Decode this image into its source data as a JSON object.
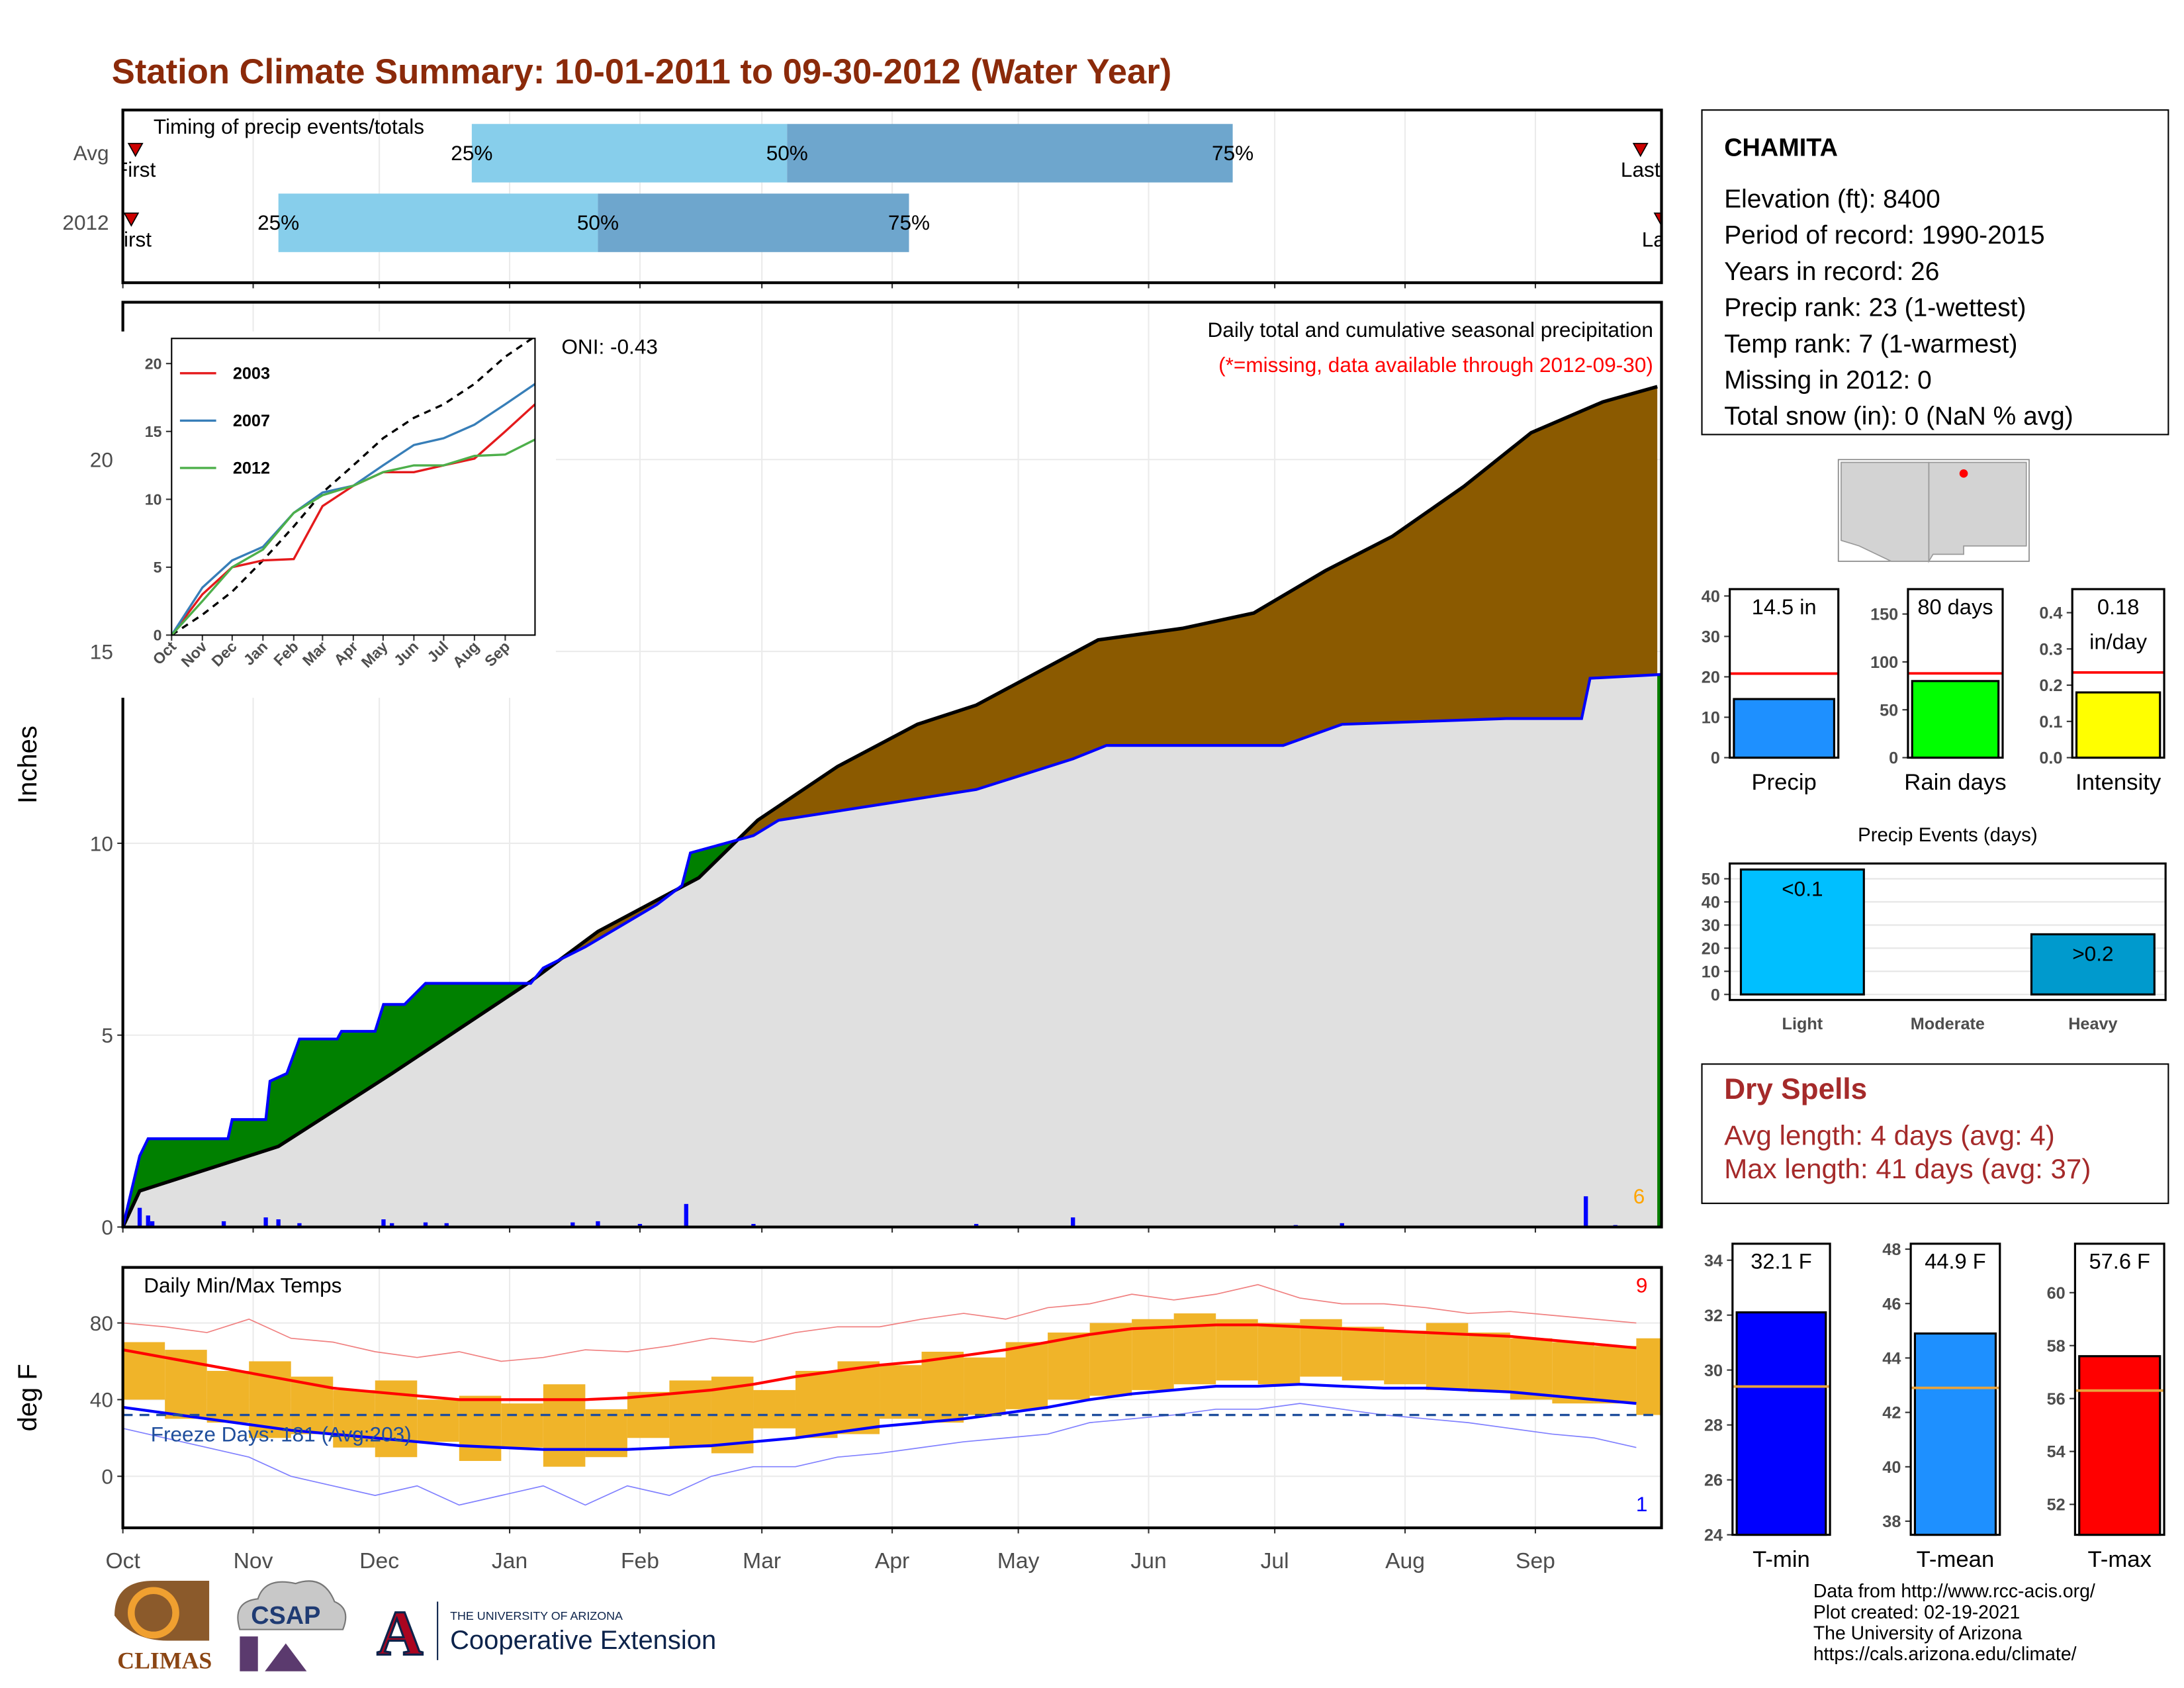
{
  "title": "Station Climate Summary: 10-01-2011 to 09-30-2012 (Water Year)",
  "station": {
    "name": "CHAMITA",
    "lines": [
      "Elevation (ft): 8400",
      "Period of record: 1990-2015",
      "Years in record: 26",
      "Precip rank: 23 (1-wettest)",
      "Temp rank: 7 (1-warmest)",
      "Missing in 2012: 0",
      "Total snow (in): 0 (NaN % avg)"
    ]
  },
  "dry_spells": {
    "title": "Dry Spells",
    "lines": [
      "Avg length: 4 days (avg: 4)",
      "Max length: 41 days (avg: 37)"
    ]
  },
  "footer": [
    "Data from http://www.rcc-acis.org/",
    "Plot created: 02-19-2021",
    "The University of Arizona",
    "https://cals.arizona.edu/climate/"
  ],
  "logos": {
    "climas": "CLIMAS",
    "csap": "CSAP",
    "ua_letter": "A",
    "ua_name": "THE UNIVERSITY OF ARIZONA",
    "extension": "Cooperative Extension"
  },
  "chart_data": [
    {
      "type": "timeline",
      "title": "Timing of precip events/totals",
      "xlim": [
        0,
        366
      ],
      "categories": [
        "Avg",
        "2012"
      ],
      "first": [
        3,
        2
      ],
      "q25": [
        83,
        37
      ],
      "q50": [
        158,
        113
      ],
      "q75": [
        264,
        187
      ],
      "last": [
        361,
        366
      ],
      "labels": {
        "first": "First",
        "q25": "25%",
        "q50": "50%",
        "q75": "75%",
        "last": "Last"
      },
      "colors": [
        "#87ceeb",
        "#6ea6cd"
      ],
      "marker_color": "#cc0000"
    },
    {
      "type": "area",
      "title": "Daily total and cumulative seasonal precipitation",
      "subtitle": "(*=missing, data available through 2012-09-30)",
      "ylabel": "Inches",
      "annotation": "ONI: -0.43",
      "count_label": "6",
      "xlim": [
        0,
        366
      ],
      "ylim": [
        0,
        24.1
      ],
      "yticks": [
        0,
        5,
        10,
        15,
        20
      ],
      "grid": true,
      "series": [
        {
          "color": "#000000",
          "x": [
            0,
            4,
            37,
            64,
            97,
            113,
            137,
            151,
            170,
            189,
            203,
            232,
            252,
            269,
            286,
            302,
            319,
            335,
            352,
            365
          ],
          "values": [
            0,
            0.94,
            2.1,
            4.0,
            6.4,
            7.7,
            9.1,
            10.6,
            12.0,
            13.1,
            13.6,
            15.3,
            15.6,
            16.0,
            17.1,
            18.0,
            19.3,
            20.7,
            21.5,
            21.9
          ]
        },
        {
          "color": "#0000ff",
          "x": [
            0,
            4,
            6,
            25,
            26,
            34,
            35,
            39,
            42,
            51,
            52,
            60,
            62,
            67,
            72,
            97,
            100,
            110,
            127,
            133,
            135,
            150,
            156,
            203,
            226,
            234,
            276,
            290,
            329,
            347,
            349,
            366
          ],
          "values": [
            0,
            1.85,
            2.3,
            2.3,
            2.8,
            2.8,
            3.8,
            4.0,
            4.9,
            4.9,
            5.1,
            5.1,
            5.8,
            5.8,
            6.35,
            6.35,
            6.75,
            7.3,
            8.4,
            8.9,
            9.75,
            10.2,
            10.6,
            11.4,
            12.2,
            12.55,
            12.55,
            13.1,
            13.25,
            13.25,
            14.3,
            14.4
          ]
        }
      ],
      "above_color": "#008000",
      "below_color": "#8b5a00",
      "fill": "#e0e0e0",
      "count_color": "#ffa500",
      "daily": {
        "color": "#0000ff",
        "x": [
          4,
          6,
          7,
          24,
          34,
          37,
          42,
          62,
          64,
          72,
          77,
          107,
          113,
          123,
          134,
          150,
          203,
          226,
          279,
          290,
          348,
          355
        ],
        "values": [
          0.5,
          0.3,
          0.15,
          0.15,
          0.25,
          0.2,
          0.1,
          0.2,
          0.1,
          0.12,
          0.1,
          0.12,
          0.15,
          0.08,
          0.6,
          0.08,
          0.08,
          0.25,
          0.05,
          0.1,
          0.8,
          0.05
        ]
      }
    },
    {
      "type": "line",
      "xlim": [
        0,
        366
      ],
      "ylim": [
        0,
        21.85
      ],
      "yticks": [
        0,
        5,
        10,
        15,
        20
      ],
      "xticks": [
        {
          "value": 0,
          "label": "Oct"
        },
        {
          "value": 31,
          "label": "Nov"
        },
        {
          "value": 61,
          "label": "Dec"
        },
        {
          "value": 92,
          "label": "Jan"
        },
        {
          "value": 123,
          "label": "Feb"
        },
        {
          "value": 152,
          "label": "Mar"
        },
        {
          "value": 183,
          "label": "Apr"
        },
        {
          "value": 213,
          "label": "May"
        },
        {
          "value": 244,
          "label": "Jun"
        },
        {
          "value": 274,
          "label": "Jul"
        },
        {
          "value": 305,
          "label": "Aug"
        },
        {
          "value": 336,
          "label": "Sep"
        }
      ],
      "x": [
        0,
        31,
        61,
        92,
        123,
        152,
        183,
        213,
        244,
        274,
        305,
        336,
        366
      ],
      "series": [
        {
          "color": "#000000",
          "dash": true,
          "values": [
            0,
            1.5,
            3.2,
            5.5,
            8.0,
            10.5,
            12.5,
            14.5,
            16.0,
            17.0,
            18.5,
            20.5,
            22.0
          ]
        },
        {
          "name": "2003",
          "color": "#e41a1c",
          "values": [
            0,
            3.0,
            5.0,
            5.5,
            5.6,
            9.5,
            11.0,
            12.0,
            12.0,
            12.5,
            13.0,
            15.0,
            17.0
          ]
        },
        {
          "name": "2007",
          "color": "#377eb8",
          "values": [
            0,
            3.5,
            5.5,
            6.5,
            9.0,
            10.5,
            11.0,
            12.5,
            14.0,
            14.5,
            15.5,
            17.0,
            18.5
          ]
        },
        {
          "name": "2012",
          "color": "#4daf4a",
          "values": [
            0,
            2.5,
            5.0,
            6.3,
            9.0,
            10.3,
            11.0,
            12.0,
            12.5,
            12.5,
            13.2,
            13.3,
            14.4
          ]
        }
      ]
    },
    {
      "type": "range",
      "title": "Daily Min/Max Temps",
      "ylabel": "deg F",
      "annotation": "Freeze Days: 181 (Avg:203)",
      "high_count": "9",
      "low_count": "1",
      "freeze": 32,
      "xlim": [
        0,
        366
      ],
      "ylim": [
        -26.9,
        109
      ],
      "yticks": [
        0,
        40,
        80
      ],
      "grid": true,
      "xticks": [
        {
          "value": 0,
          "label": "Oct"
        },
        {
          "value": 31,
          "label": "Nov"
        },
        {
          "value": 61,
          "label": "Dec"
        },
        {
          "value": 92,
          "label": "Jan"
        },
        {
          "value": 123,
          "label": "Feb"
        },
        {
          "value": 152,
          "label": "Mar"
        },
        {
          "value": 183,
          "label": "Apr"
        },
        {
          "value": 213,
          "label": "May"
        },
        {
          "value": 244,
          "label": "Jun"
        },
        {
          "value": 274,
          "label": "Jul"
        },
        {
          "value": 305,
          "label": "Aug"
        },
        {
          "value": 336,
          "label": "Sep"
        }
      ],
      "x": [
        0,
        10,
        20,
        30,
        40,
        50,
        60,
        70,
        80,
        90,
        100,
        110,
        120,
        130,
        140,
        150,
        160,
        170,
        180,
        190,
        200,
        210,
        220,
        230,
        240,
        250,
        260,
        270,
        280,
        290,
        300,
        310,
        320,
        330,
        340,
        350,
        360
      ],
      "daily_max": [
        70,
        66,
        55,
        60,
        52,
        45,
        50,
        40,
        42,
        38,
        48,
        35,
        44,
        50,
        52,
        45,
        55,
        60,
        58,
        65,
        62,
        70,
        75,
        80,
        82,
        85,
        82,
        80,
        82,
        78,
        76,
        80,
        75,
        72,
        70,
        68,
        72
      ],
      "daily_min": [
        40,
        30,
        28,
        20,
        22,
        15,
        10,
        18,
        8,
        15,
        5,
        10,
        20,
        15,
        12,
        25,
        20,
        22,
        30,
        28,
        32,
        35,
        40,
        42,
        45,
        48,
        50,
        48,
        52,
        50,
        48,
        45,
        44,
        40,
        38,
        38,
        32
      ],
      "avg_max": [
        66,
        62,
        58,
        54,
        50,
        46,
        44,
        42,
        40,
        40,
        40,
        40,
        41,
        43,
        45,
        48,
        52,
        55,
        58,
        60,
        63,
        66,
        70,
        74,
        77,
        78,
        79,
        79,
        78,
        77,
        76,
        75,
        74,
        73,
        71,
        69,
        67
      ],
      "avg_min": [
        36,
        33,
        30,
        27,
        24,
        22,
        20,
        18,
        16,
        15,
        14,
        14,
        14,
        15,
        16,
        18,
        20,
        23,
        26,
        28,
        30,
        33,
        36,
        40,
        43,
        45,
        47,
        47,
        48,
        47,
        46,
        46,
        45,
        44,
        42,
        40,
        38
      ],
      "record_high": [
        80,
        78,
        75,
        82,
        72,
        70,
        65,
        62,
        65,
        60,
        62,
        66,
        65,
        68,
        72,
        70,
        75,
        78,
        78,
        82,
        85,
        82,
        88,
        90,
        95,
        92,
        95,
        100,
        93,
        90,
        90,
        88,
        85,
        86,
        84,
        82,
        80
      ],
      "record_low": [
        25,
        20,
        15,
        10,
        0,
        -5,
        -10,
        -5,
        -15,
        -10,
        -5,
        -15,
        -5,
        -10,
        0,
        5,
        5,
        10,
        12,
        15,
        18,
        20,
        22,
        28,
        30,
        32,
        35,
        35,
        38,
        35,
        32,
        30,
        28,
        25,
        22,
        20,
        15
      ],
      "bar_color": "#f0b429",
      "max_color": "#ff0000",
      "min_color": "#0000ff",
      "record_high_color": "#f08080",
      "record_low_color": "#8080ff",
      "freeze_color": "#1f4e9c"
    },
    {
      "type": "bar",
      "categories": [
        "Precip"
      ],
      "values": [
        14.5
      ],
      "value_labels": [
        "14.5 in"
      ],
      "avg": 20.8,
      "avg_color": "#ff0000",
      "color": "#1e90ff",
      "ylim": [
        0,
        41.7
      ],
      "yticks": [
        0,
        10,
        20,
        30,
        40
      ]
    },
    {
      "type": "bar",
      "categories": [
        "Rain days"
      ],
      "values": [
        80
      ],
      "value_labels": [
        "80 days"
      ],
      "avg": 88,
      "avg_color": "#ff0000",
      "color": "#00ff00",
      "ylim": [
        0,
        176
      ],
      "yticks": [
        0,
        50,
        100,
        150
      ]
    },
    {
      "type": "bar",
      "categories": [
        "Intensity"
      ],
      "values": [
        0.18
      ],
      "value_labels": [
        "0.18 in/day"
      ],
      "avg": 0.235,
      "avg_color": "#ff0000",
      "color": "#ffff00",
      "ylim": [
        0,
        0.465
      ],
      "yticks": [
        {
          "value": 0,
          "label": "0.0"
        },
        0.1,
        0.2,
        0.3,
        0.4
      ]
    },
    {
      "type": "bar",
      "title": "Precip Events (days)",
      "categories": [
        "Light",
        "Moderate",
        "Heavy"
      ],
      "values": [
        54,
        0,
        26
      ],
      "thresholds": [
        "<0.1",
        null,
        ">0.2"
      ],
      "colors": [
        "#00bfff",
        "#00bfff",
        "#009acd"
      ],
      "ylim": [
        -2.4,
        56.6
      ],
      "yticks": [
        0,
        10,
        20,
        30,
        40,
        50
      ],
      "grid": true
    },
    {
      "type": "bar",
      "categories": [
        "T-min"
      ],
      "values": [
        32.1
      ],
      "value_labels": [
        "32.1 F"
      ],
      "avg": 29.4,
      "avg_color": "#e8a33d",
      "color": "#0000ff",
      "ylim": [
        24,
        34.6
      ],
      "yticks": [
        24,
        26,
        28,
        30,
        32,
        34
      ]
    },
    {
      "type": "bar",
      "categories": [
        "T-mean"
      ],
      "values": [
        44.9
      ],
      "value_labels": [
        "44.9 F"
      ],
      "avg": 42.9,
      "avg_color": "#e8a33d",
      "color": "#1e90ff",
      "ylim": [
        37.5,
        48.2
      ],
      "yticks": [
        38,
        40,
        42,
        44,
        46,
        48
      ]
    },
    {
      "type": "bar",
      "categories": [
        "T-max"
      ],
      "values": [
        57.6
      ],
      "value_labels": [
        "57.6 F"
      ],
      "avg": 56.3,
      "avg_color": "#e8a33d",
      "color": "#ff0000",
      "ylim": [
        50.85,
        61.85
      ],
      "yticks": [
        52,
        54,
        56,
        58,
        60
      ]
    }
  ]
}
